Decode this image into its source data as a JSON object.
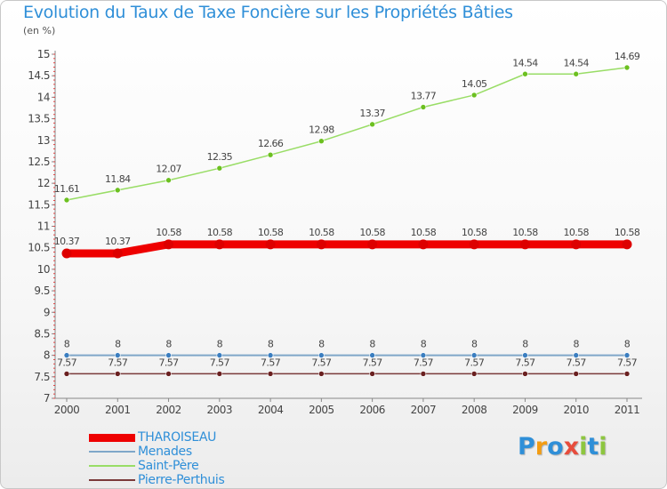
{
  "title": "Evolution du Taux de Taxe Foncière sur les Propriétés Bâties",
  "unit_label": "(en %)",
  "logo": {
    "text": "Proxiti",
    "letters": [
      "P",
      "r",
      "o",
      "x",
      "i",
      "t",
      "i"
    ],
    "colors": [
      "#2f8fd8",
      "#f39c12",
      "#2f8fd8",
      "#e74c3c",
      "#8dc63f",
      "#2f8fd8",
      "#8dc63f"
    ]
  },
  "chart_data": {
    "type": "line",
    "title": "Evolution du Taux de Taxe Foncière sur les Propriétés Bâties",
    "ylabel": "(en %)",
    "xlabel": "",
    "ylim": [
      7,
      15
    ],
    "yticks": [
      "7",
      "7.5",
      "8",
      "8.5",
      "9",
      "9.5",
      "10",
      "10.5",
      "11",
      "11.5",
      "12",
      "12.5",
      "13",
      "13.5",
      "14",
      "14.5",
      "15"
    ],
    "categories": [
      "2000",
      "2001",
      "2002",
      "2003",
      "2004",
      "2005",
      "2006",
      "2007",
      "2008",
      "2009",
      "2010",
      "2011"
    ],
    "series": [
      {
        "name": "THAROISEAU",
        "color": "#ee0000",
        "values": [
          10.37,
          10.37,
          10.58,
          10.58,
          10.58,
          10.58,
          10.58,
          10.58,
          10.58,
          10.58,
          10.58,
          10.58
        ],
        "labels": [
          "10.37",
          "10.37",
          "10.58",
          "10.58",
          "10.58",
          "10.58",
          "10.58",
          "10.58",
          "10.58",
          "10.58",
          "10.58",
          "10.58"
        ]
      },
      {
        "name": "Menades",
        "color": "#7fa7c9",
        "values": [
          8,
          8,
          8,
          8,
          8,
          8,
          8,
          8,
          8,
          8,
          8,
          8
        ],
        "labels": [
          "8",
          "8",
          "8",
          "8",
          "8",
          "8",
          "8",
          "8",
          "8",
          "8",
          "8",
          "8"
        ]
      },
      {
        "name": "Saint-Père",
        "color": "#99dd66",
        "values": [
          11.61,
          11.84,
          12.07,
          12.35,
          12.66,
          12.98,
          13.37,
          13.77,
          14.05,
          14.54,
          14.54,
          14.69
        ],
        "labels": [
          "11.61",
          "11.84",
          "12.07",
          "12.35",
          "12.66",
          "12.98",
          "13.37",
          "13.77",
          "14.05",
          "14.54",
          "14.54",
          "14.69"
        ]
      },
      {
        "name": "Pierre-Perthuis",
        "color": "#7a3a3a",
        "values": [
          7.57,
          7.57,
          7.57,
          7.57,
          7.57,
          7.57,
          7.57,
          7.57,
          7.57,
          7.57,
          7.57,
          7.57
        ],
        "labels": [
          "7.57",
          "7.57",
          "7.57",
          "7.57",
          "7.57",
          "7.57",
          "7.57",
          "7.57",
          "7.57",
          "7.57",
          "7.57",
          "7.57"
        ]
      }
    ]
  }
}
